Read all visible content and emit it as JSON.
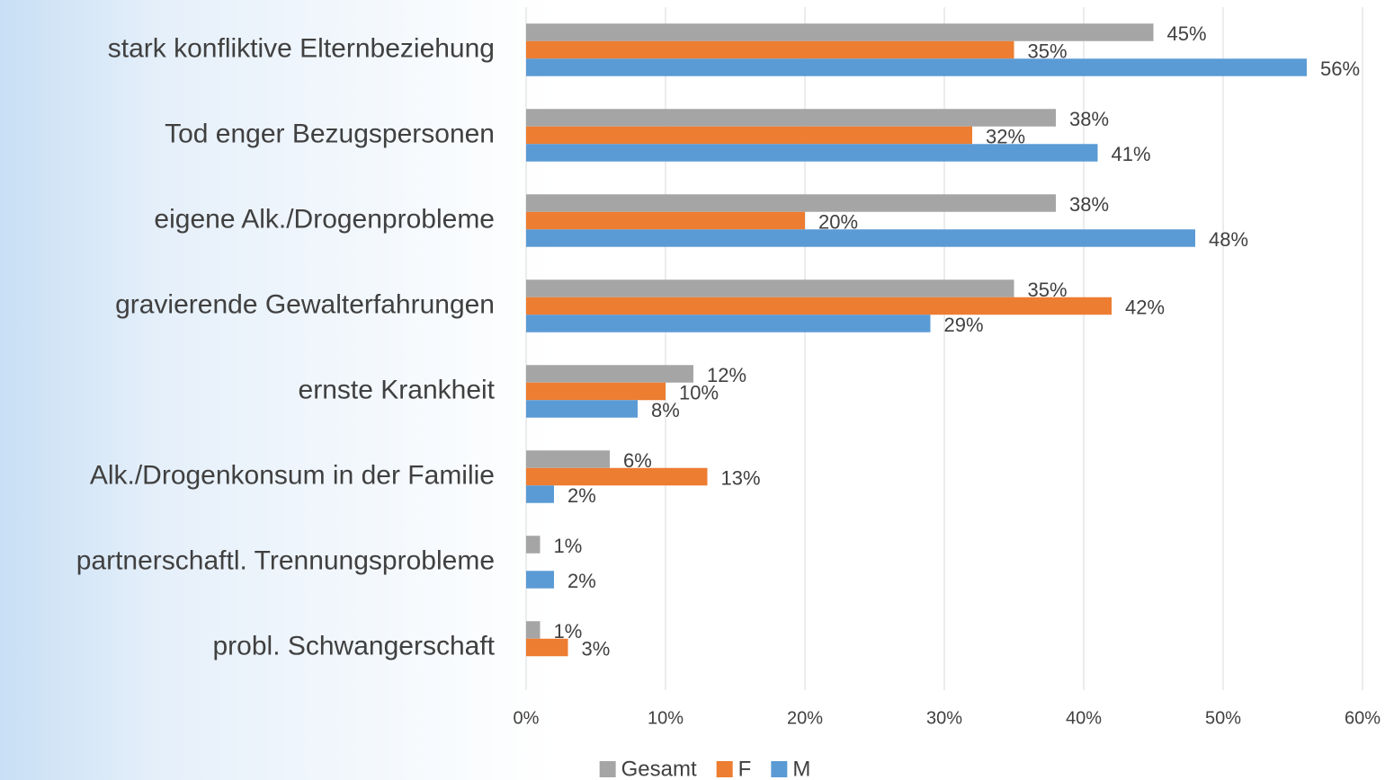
{
  "chart_data": {
    "type": "hbar",
    "categories": [
      "stark konfliktive Elternbeziehung",
      "Tod enger Bezugspersonen",
      "eigene Alk./Drogenprobleme",
      "gravierende Gewalterfahrungen",
      "ernste Krankheit",
      "Alk./Drogenkonsum in der Familie",
      "partnerschaftl. Trennungsprobleme",
      "probl. Schwangerschaft"
    ],
    "series": [
      {
        "name": "Gesamt",
        "color": "#a5a5a5",
        "values": [
          45,
          38,
          38,
          35,
          12,
          6,
          1,
          1
        ],
        "value_labels": [
          "45%",
          "38%",
          "38%",
          "35%",
          "12%",
          "6%",
          "1%",
          "1%"
        ]
      },
      {
        "name": "F",
        "color": "#ed7d31",
        "values": [
          35,
          32,
          20,
          42,
          10,
          13,
          null,
          3
        ],
        "value_labels": [
          "35%",
          "32%",
          "20%",
          "42%",
          "10%",
          "13%",
          null,
          "3%"
        ]
      },
      {
        "name": "M",
        "color": "#5b9bd5",
        "values": [
          56,
          41,
          48,
          29,
          8,
          2,
          2,
          null
        ],
        "value_labels": [
          "56%",
          "41%",
          "48%",
          "29%",
          "8%",
          "2%",
          "2%",
          null
        ]
      }
    ],
    "xlim": [
      0,
      60
    ],
    "xticks": [
      {
        "value": 0,
        "label": "0%"
      },
      {
        "value": 10,
        "label": "10%"
      },
      {
        "value": 20,
        "label": "20%"
      },
      {
        "value": 30,
        "label": "30%"
      },
      {
        "value": 40,
        "label": "40%"
      },
      {
        "value": 50,
        "label": "50%"
      },
      {
        "value": 60,
        "label": "60%"
      }
    ],
    "grid": true,
    "legend": "bottom"
  }
}
